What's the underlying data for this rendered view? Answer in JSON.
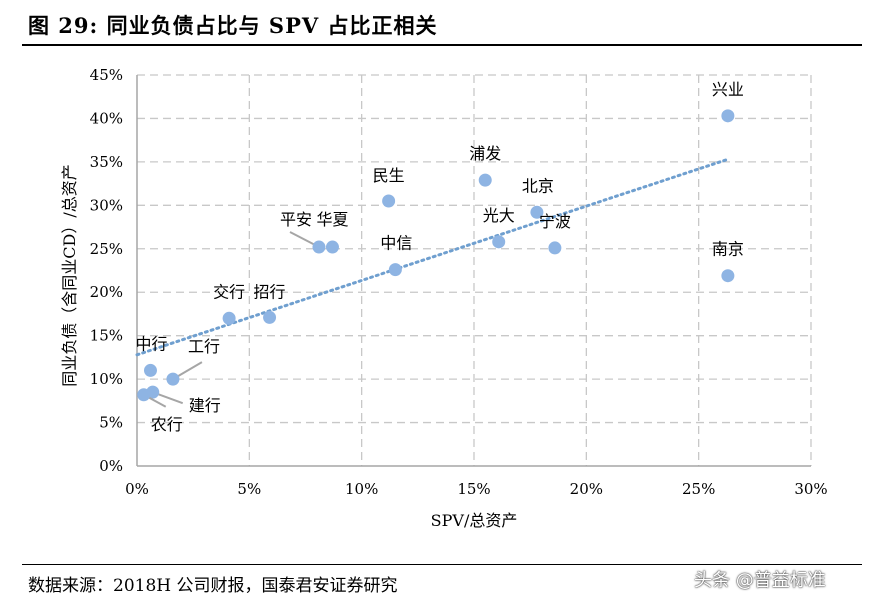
{
  "header": {
    "title": "图 29:  同业负债占比与 SPV 占比正相关"
  },
  "footer": {
    "source": "数据来源：2018H 公司财报，国泰君安证券研究",
    "watermark": "头条 @普益标准"
  },
  "chart_data": {
    "type": "scatter",
    "title": "",
    "xlabel": "SPV/总资产",
    "ylabel": "同业负债（含同业CD）/总资产",
    "xlim": [
      0,
      30
    ],
    "ylim": [
      0,
      45
    ],
    "x_ticks": [
      "0%",
      "5%",
      "10%",
      "15%",
      "20%",
      "25%",
      "30%"
    ],
    "y_ticks": [
      "0%",
      "5%",
      "10%",
      "15%",
      "20%",
      "25%",
      "30%",
      "35%",
      "40%",
      "45%"
    ],
    "grid": true,
    "trendline": {
      "type": "linear",
      "style": "dotted",
      "x": [
        0,
        26.3
      ],
      "y": [
        12.8,
        35.3
      ]
    },
    "marker_color": "#8EB4E3",
    "trend_color": "#6F9FCF",
    "points": [
      {
        "label": "兴业",
        "x": 26.3,
        "y": 40.3
      },
      {
        "label": "浦发",
        "x": 15.5,
        "y": 32.9
      },
      {
        "label": "民生",
        "x": 11.2,
        "y": 30.5
      },
      {
        "label": "北京",
        "x": 17.8,
        "y": 29.2
      },
      {
        "label": "光大",
        "x": 16.1,
        "y": 25.8
      },
      {
        "label": "宁波",
        "x": 18.6,
        "y": 25.1
      },
      {
        "label": "平安",
        "x": 8.1,
        "y": 25.2
      },
      {
        "label": "华夏",
        "x": 8.7,
        "y": 25.2
      },
      {
        "label": "中信",
        "x": 11.5,
        "y": 22.6
      },
      {
        "label": "南京",
        "x": 26.3,
        "y": 21.9
      },
      {
        "label": "交行",
        "x": 4.1,
        "y": 17.0
      },
      {
        "label": "招行",
        "x": 5.9,
        "y": 17.1
      },
      {
        "label": "中行",
        "x": 0.6,
        "y": 11.0
      },
      {
        "label": "工行",
        "x": 1.6,
        "y": 10.0
      },
      {
        "label": "建行",
        "x": 0.7,
        "y": 8.5
      },
      {
        "label": "农行",
        "x": 0.3,
        "y": 8.2
      }
    ]
  }
}
